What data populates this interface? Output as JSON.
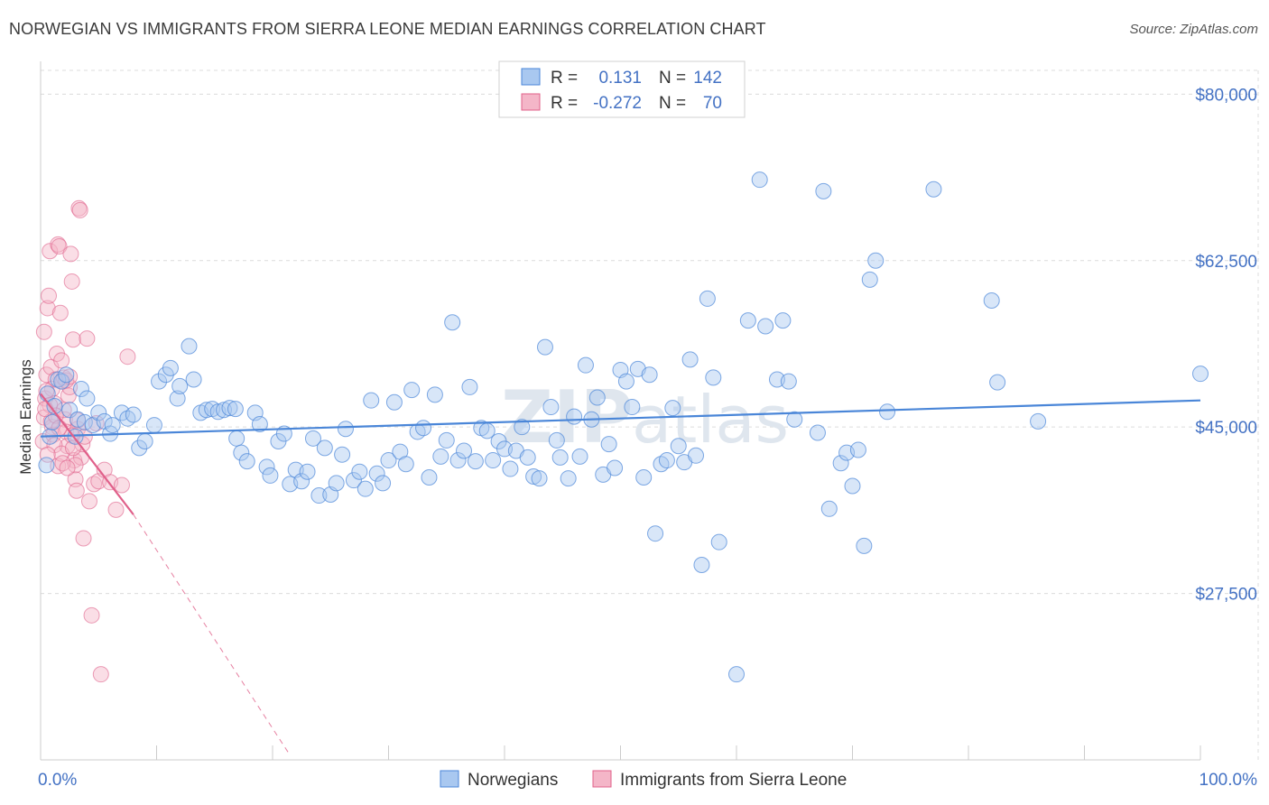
{
  "title": "NORWEGIAN VS IMMIGRANTS FROM SIERRA LEONE MEDIAN EARNINGS CORRELATION CHART",
  "source": "Source: ZipAtlas.com",
  "watermark": {
    "zip": "ZIP",
    "atlas": "atlas"
  },
  "colors": {
    "blue": "#4a86d8",
    "blue_fill": "#a9c8f0",
    "pink": "#e0608a",
    "pink_fill": "#f4b6c8",
    "axis_label": "#4472c4",
    "grid": "#dcdcdc"
  },
  "legend": {
    "rows": [
      {
        "r_label": "R =",
        "r_value": "0.131",
        "n_label": "N =",
        "n_value": "142"
      },
      {
        "r_label": "R =",
        "r_value": "-0.272",
        "n_label": "N =",
        "n_value": "70"
      }
    ]
  },
  "bottom_legend": [
    "Norwegians",
    "Immigrants from Sierra Leone"
  ],
  "chart_data": {
    "type": "scatter",
    "title": "NORWEGIAN VS IMMIGRANTS FROM SIERRA LEONE MEDIAN EARNINGS CORRELATION CHART",
    "xlabel": "",
    "ylabel": "Median Earnings",
    "xlim": [
      0,
      100
    ],
    "ylim": [
      10000,
      82500
    ],
    "x_tick_labels": [
      "0.0%",
      "100.0%"
    ],
    "y_ticks": [
      27500,
      45000,
      62500,
      80000
    ],
    "y_tick_labels": [
      "$27,500",
      "$45,000",
      "$62,500",
      "$80,000"
    ],
    "grid": true,
    "legend_position": "top-center",
    "series": [
      {
        "name": "Norwegians",
        "color": "#4a86d8",
        "trend": {
          "x": [
            0,
            100
          ],
          "y": [
            44000,
            47800
          ]
        },
        "points": [
          [
            0.5,
            41000
          ],
          [
            0.6,
            48500
          ],
          [
            0.8,
            44000
          ],
          [
            1.0,
            45500
          ],
          [
            1.2,
            47200
          ],
          [
            1.5,
            50000
          ],
          [
            1.8,
            49800
          ],
          [
            2.2,
            50500
          ],
          [
            2.5,
            46800
          ],
          [
            3.0,
            44000
          ],
          [
            3.2,
            45800
          ],
          [
            3.5,
            49000
          ],
          [
            3.8,
            45500
          ],
          [
            4.0,
            48000
          ],
          [
            4.5,
            45200
          ],
          [
            5.0,
            46500
          ],
          [
            5.5,
            45600
          ],
          [
            6.0,
            44300
          ],
          [
            6.2,
            45200
          ],
          [
            7.0,
            46500
          ],
          [
            7.5,
            45900
          ],
          [
            8.0,
            46300
          ],
          [
            8.5,
            42800
          ],
          [
            9.0,
            43500
          ],
          [
            9.8,
            45200
          ],
          [
            10.2,
            49800
          ],
          [
            10.8,
            50500
          ],
          [
            11.2,
            51200
          ],
          [
            11.8,
            48000
          ],
          [
            12.0,
            49300
          ],
          [
            12.8,
            53500
          ],
          [
            13.2,
            50000
          ],
          [
            13.8,
            46500
          ],
          [
            14.3,
            46800
          ],
          [
            14.8,
            46900
          ],
          [
            15.3,
            46600
          ],
          [
            15.8,
            46800
          ],
          [
            16.3,
            47000
          ],
          [
            16.8,
            46900
          ],
          [
            16.9,
            43800
          ],
          [
            17.3,
            42300
          ],
          [
            17.8,
            41400
          ],
          [
            18.5,
            46500
          ],
          [
            18.9,
            45300
          ],
          [
            19.5,
            40800
          ],
          [
            19.8,
            39900
          ],
          [
            20.5,
            43500
          ],
          [
            21.0,
            44300
          ],
          [
            21.5,
            39000
          ],
          [
            22.0,
            40500
          ],
          [
            22.5,
            39300
          ],
          [
            23.0,
            40300
          ],
          [
            23.5,
            43800
          ],
          [
            24.0,
            37800
          ],
          [
            24.5,
            42800
          ],
          [
            25.0,
            37900
          ],
          [
            25.5,
            39100
          ],
          [
            26.0,
            42100
          ],
          [
            26.3,
            44800
          ],
          [
            27.0,
            39400
          ],
          [
            27.5,
            40300
          ],
          [
            28.0,
            38500
          ],
          [
            28.5,
            47800
          ],
          [
            29.0,
            40100
          ],
          [
            29.5,
            39100
          ],
          [
            30.0,
            41500
          ],
          [
            30.5,
            47600
          ],
          [
            31.0,
            42400
          ],
          [
            31.5,
            41100
          ],
          [
            32.0,
            48900
          ],
          [
            32.5,
            44500
          ],
          [
            33.0,
            44900
          ],
          [
            33.5,
            39700
          ],
          [
            34.0,
            48400
          ],
          [
            34.5,
            41900
          ],
          [
            35.0,
            43600
          ],
          [
            35.5,
            56000
          ],
          [
            36.0,
            41500
          ],
          [
            36.5,
            42500
          ],
          [
            37.0,
            49200
          ],
          [
            37.5,
            41400
          ],
          [
            38.0,
            44900
          ],
          [
            38.5,
            44600
          ],
          [
            39.0,
            41500
          ],
          [
            39.5,
            43500
          ],
          [
            40.0,
            42700
          ],
          [
            40.5,
            40600
          ],
          [
            41.0,
            42500
          ],
          [
            41.5,
            45000
          ],
          [
            42.0,
            41800
          ],
          [
            42.5,
            39800
          ],
          [
            43.0,
            39600
          ],
          [
            43.5,
            53400
          ],
          [
            44.0,
            47100
          ],
          [
            44.5,
            43600
          ],
          [
            44.8,
            41800
          ],
          [
            45.5,
            39600
          ],
          [
            46.0,
            46100
          ],
          [
            46.5,
            41900
          ],
          [
            47.0,
            51500
          ],
          [
            47.5,
            45800
          ],
          [
            48.0,
            48100
          ],
          [
            48.5,
            40000
          ],
          [
            49.0,
            43200
          ],
          [
            49.5,
            40700
          ],
          [
            50.0,
            51000
          ],
          [
            50.5,
            49800
          ],
          [
            51.0,
            47100
          ],
          [
            51.5,
            51100
          ],
          [
            52.0,
            39700
          ],
          [
            52.5,
            50500
          ],
          [
            53.0,
            33800
          ],
          [
            53.5,
            41100
          ],
          [
            54.0,
            41500
          ],
          [
            54.5,
            47000
          ],
          [
            55.0,
            43000
          ],
          [
            55.5,
            41300
          ],
          [
            56.0,
            52100
          ],
          [
            56.5,
            42000
          ],
          [
            57.0,
            30500
          ],
          [
            57.5,
            58500
          ],
          [
            58.0,
            50200
          ],
          [
            58.5,
            32900
          ],
          [
            60.0,
            19000
          ],
          [
            61.0,
            56200
          ],
          [
            62.0,
            71000
          ],
          [
            62.5,
            55600
          ],
          [
            63.5,
            50000
          ],
          [
            64.0,
            56200
          ],
          [
            64.5,
            49800
          ],
          [
            65.0,
            45800
          ],
          [
            67.0,
            44400
          ],
          [
            67.5,
            69800
          ],
          [
            68.0,
            36400
          ],
          [
            69.0,
            41200
          ],
          [
            69.5,
            42300
          ],
          [
            70.0,
            38800
          ],
          [
            70.5,
            42600
          ],
          [
            71.0,
            32500
          ],
          [
            71.5,
            60500
          ],
          [
            72.0,
            62500
          ],
          [
            73.0,
            46600
          ],
          [
            77.0,
            70000
          ],
          [
            82.0,
            58300
          ],
          [
            82.5,
            49700
          ],
          [
            86.0,
            45600
          ],
          [
            100.0,
            50600
          ]
        ]
      },
      {
        "name": "Immigrants from Sierra Leone",
        "color": "#e0608a",
        "trend": {
          "x": [
            0,
            8
          ],
          "y": [
            48500,
            35800
          ]
        },
        "trend_dashed": {
          "x": [
            8,
            21.5
          ],
          "y": [
            35800,
            10500
          ]
        },
        "points": [
          [
            0.2,
            43500
          ],
          [
            0.3,
            46000
          ],
          [
            0.4,
            48000
          ],
          [
            0.5,
            50500
          ],
          [
            0.6,
            57500
          ],
          [
            0.7,
            58800
          ],
          [
            0.8,
            63500
          ],
          [
            0.9,
            51300
          ],
          [
            1.0,
            49000
          ],
          [
            1.0,
            45000
          ],
          [
            1.1,
            44200
          ],
          [
            1.2,
            47500
          ],
          [
            1.3,
            50000
          ],
          [
            1.4,
            52700
          ],
          [
            1.5,
            64200
          ],
          [
            1.6,
            64000
          ],
          [
            1.7,
            57000
          ],
          [
            1.8,
            52000
          ],
          [
            1.9,
            49800
          ],
          [
            2.0,
            50200
          ],
          [
            2.1,
            45800
          ],
          [
            2.2,
            44500
          ],
          [
            2.3,
            43000
          ],
          [
            2.4,
            48300
          ],
          [
            2.5,
            49200
          ],
          [
            2.6,
            63200
          ],
          [
            2.7,
            60300
          ],
          [
            2.8,
            54200
          ],
          [
            2.9,
            41500
          ],
          [
            3.0,
            39500
          ],
          [
            3.1,
            38300
          ],
          [
            3.2,
            44800
          ],
          [
            3.3,
            68000
          ],
          [
            3.4,
            67800
          ],
          [
            3.5,
            41800
          ],
          [
            3.6,
            43200
          ],
          [
            3.7,
            33300
          ],
          [
            3.8,
            44000
          ],
          [
            4.0,
            54300
          ],
          [
            4.2,
            37200
          ],
          [
            4.4,
            25200
          ],
          [
            4.6,
            39000
          ],
          [
            4.8,
            45400
          ],
          [
            5.0,
            39300
          ],
          [
            5.2,
            19000
          ],
          [
            5.5,
            40500
          ],
          [
            6.0,
            39200
          ],
          [
            6.5,
            36300
          ],
          [
            7.0,
            38900
          ],
          [
            7.5,
            52400
          ],
          [
            0.5,
            48800
          ],
          [
            0.8,
            47300
          ],
          [
            1.2,
            43100
          ],
          [
            1.5,
            40900
          ],
          [
            1.8,
            42200
          ],
          [
            2.0,
            46800
          ],
          [
            2.2,
            49900
          ],
          [
            2.5,
            50300
          ],
          [
            2.7,
            44100
          ],
          [
            3.0,
            41000
          ],
          [
            0.3,
            55000
          ],
          [
            0.6,
            42100
          ],
          [
            0.9,
            45600
          ],
          [
            1.3,
            46200
          ],
          [
            1.6,
            44900
          ],
          [
            1.9,
            41200
          ],
          [
            2.3,
            40700
          ],
          [
            2.8,
            42800
          ],
          [
            3.2,
            45700
          ],
          [
            0.4,
            46900
          ]
        ]
      }
    ]
  }
}
